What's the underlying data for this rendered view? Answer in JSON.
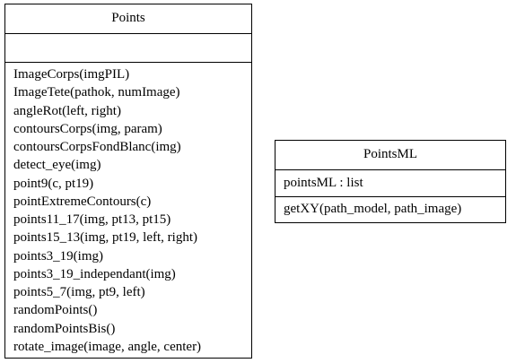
{
  "classes": {
    "points": {
      "name": "Points",
      "attributes": [],
      "methods": [
        "ImageCorps(imgPIL)",
        "ImageTete(pathok, numImage)",
        "angleRot(left, right)",
        "contoursCorps(img, param)",
        "contoursCorpsFondBlanc(img)",
        "detect_eye(img)",
        "point9(c, pt19)",
        "pointExtremeContours(c)",
        "points11_17(img, pt13, pt15)",
        "points15_13(img, pt19, left, right)",
        "points3_19(img)",
        "points3_19_independant(img)",
        "points5_7(img, pt9, left)",
        "randomPoints()",
        "randomPointsBis()",
        "rotate_image(image, angle, center)"
      ]
    },
    "pointsml": {
      "name": "PointsML",
      "attributes": [
        "pointsML : list"
      ],
      "methods": [
        "getXY(path_model, path_image)"
      ]
    }
  }
}
